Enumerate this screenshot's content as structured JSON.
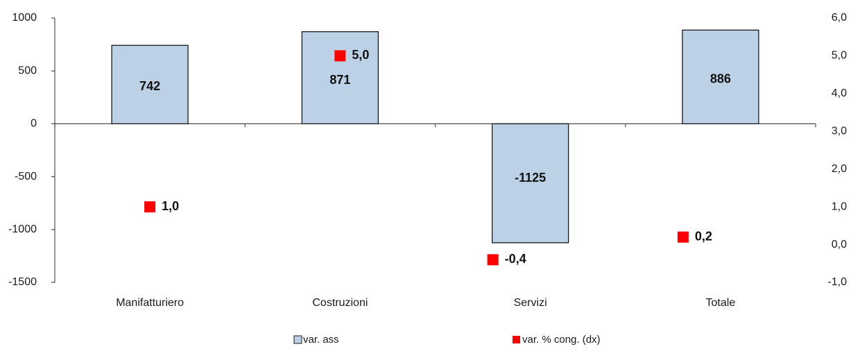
{
  "chart_data": {
    "type": "bar",
    "categories": [
      "Manifatturiero",
      "Costruzioni",
      "Servizi",
      "Totale"
    ],
    "series": [
      {
        "name": "var. ass",
        "type": "bar",
        "axis": "left",
        "values": [
          742,
          871,
          -1125,
          886
        ],
        "labels": [
          "742",
          "871",
          "-1125",
          "886"
        ],
        "color": "#bcd0e6",
        "stroke": "#1a1a1a"
      },
      {
        "name": "var. % cong. (dx)",
        "type": "scatter",
        "axis": "right",
        "values": [
          1.0,
          5.0,
          -0.4,
          0.2
        ],
        "labels": [
          "1,0",
          "5,0",
          "-0,4",
          "0,2"
        ],
        "color": "#ff0000"
      }
    ],
    "y_left": {
      "ylim": [
        -1500,
        1000
      ],
      "ticks": [
        1000,
        500,
        0,
        -500,
        -1000,
        -1500
      ],
      "tick_labels": [
        "1000",
        "500",
        "0",
        "-500",
        "-1000",
        "-1500"
      ]
    },
    "y_right": {
      "ylim": [
        -1.0,
        6.0
      ],
      "ticks": [
        6.0,
        5.0,
        4.0,
        3.0,
        2.0,
        1.0,
        0.0,
        -1.0
      ],
      "tick_labels": [
        "6,0",
        "5,0",
        "4,0",
        "3,0",
        "2,0",
        "1,0",
        "0,0",
        "-1,0"
      ]
    },
    "title": "",
    "xlabel": "",
    "ylabel": "",
    "grid": false,
    "legend_position": "bottom"
  }
}
